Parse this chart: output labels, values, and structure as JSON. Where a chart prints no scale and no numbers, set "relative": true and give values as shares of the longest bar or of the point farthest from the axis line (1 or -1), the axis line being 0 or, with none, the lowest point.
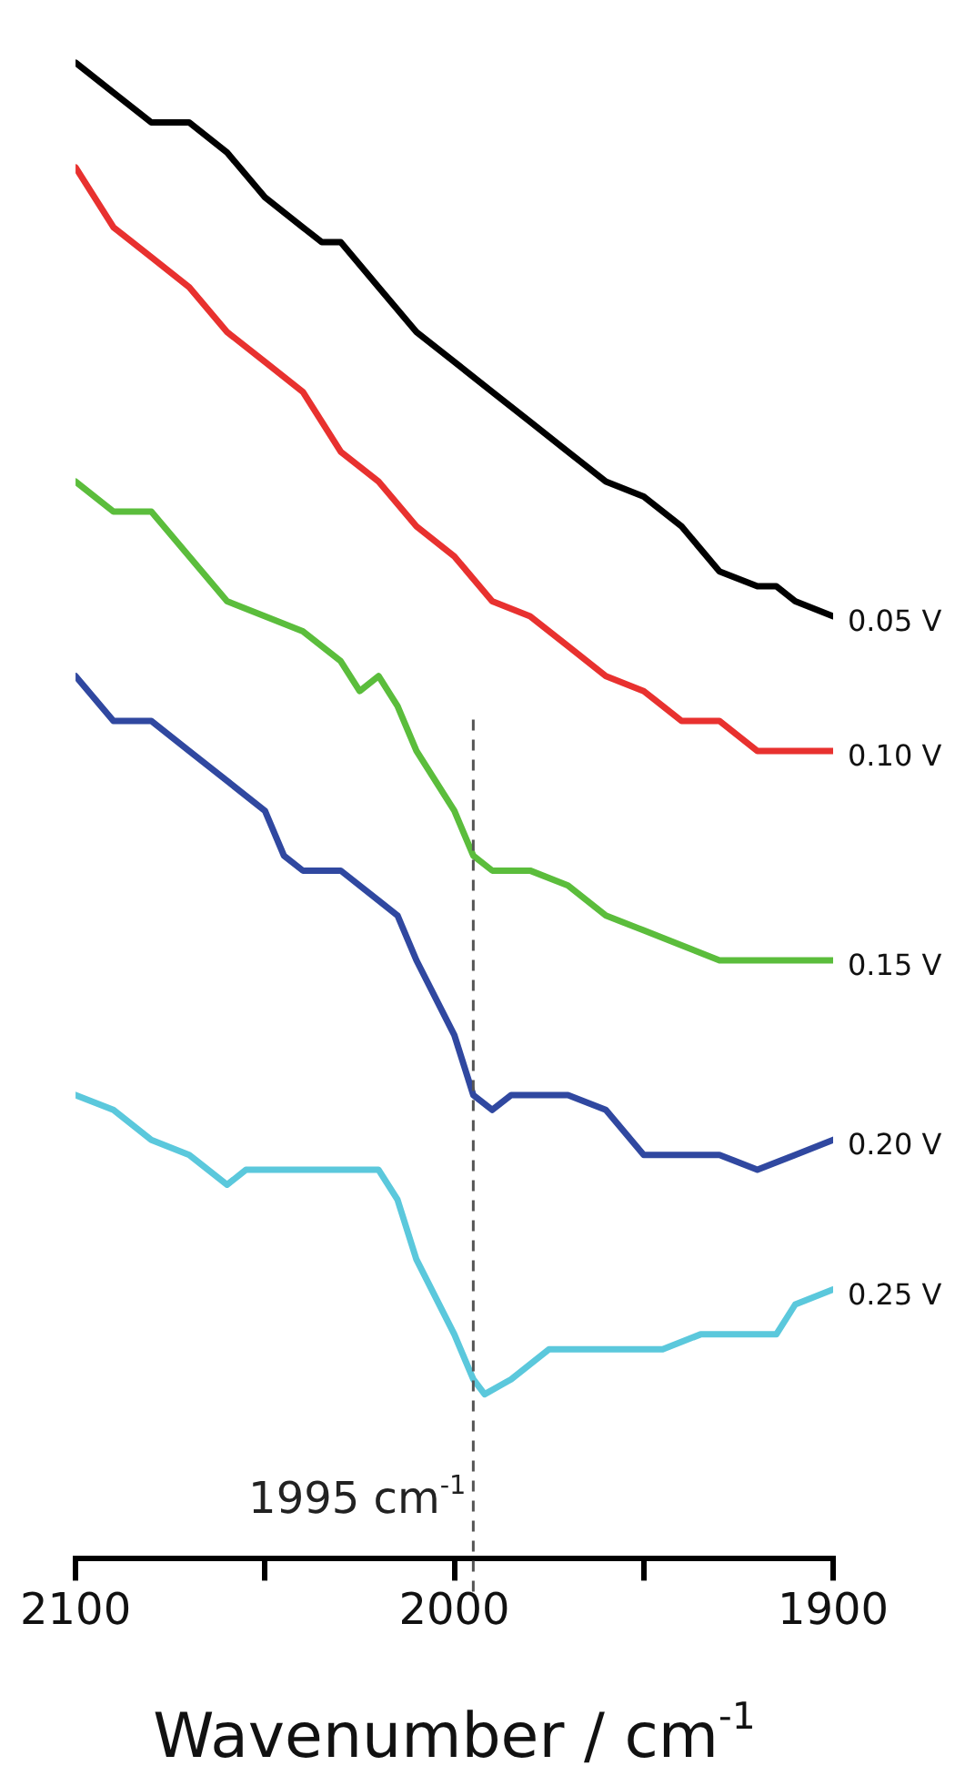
{
  "chart_data": {
    "type": "line",
    "relative": true,
    "xlabel": "Wavenumber / cm$^{-1}$",
    "xlim": [
      2100,
      1900
    ],
    "xticks": [
      2100,
      {
        "value": 2050,
        "label": null
      },
      2000,
      {
        "value": 1950,
        "label": null
      },
      1900
    ],
    "grid": false,
    "legend": false,
    "tick_labels": "x",
    "marker": "none",
    "line_style": "solid",
    "ref_lines": [
      {
        "axis": "x",
        "value": 1995,
        "label": "1995 cm$^{-1}$",
        "color": "#555555",
        "line_style": "dashed"
      }
    ],
    "series": [
      {
        "name": "0.05 V",
        "color": "#000000",
        "x": [
          2100,
          2090,
          2080,
          2070,
          2060,
          2050,
          2040,
          2035,
          2030,
          2020,
          2010,
          2000,
          1990,
          1980,
          1970,
          1960,
          1950,
          1940,
          1930,
          1920,
          1915,
          1910,
          1900
        ],
        "values": [
          1.0,
          0.98,
          0.96,
          0.96,
          0.94,
          0.91,
          0.89,
          0.88,
          0.88,
          0.85,
          0.82,
          0.8,
          0.78,
          0.76,
          0.74,
          0.72,
          0.71,
          0.69,
          0.66,
          0.65,
          0.65,
          0.64,
          0.63
        ]
      },
      {
        "name": "0.10 V",
        "color": "#e8312f",
        "x": [
          2100,
          2090,
          2080,
          2070,
          2060,
          2050,
          2040,
          2030,
          2020,
          2010,
          2000,
          1990,
          1980,
          1970,
          1960,
          1950,
          1940,
          1930,
          1920,
          1910,
          1900
        ],
        "values": [
          0.93,
          0.89,
          0.87,
          0.85,
          0.82,
          0.8,
          0.78,
          0.74,
          0.72,
          0.69,
          0.67,
          0.64,
          0.63,
          0.61,
          0.59,
          0.58,
          0.56,
          0.56,
          0.54,
          0.54,
          0.54
        ]
      },
      {
        "name": "0.15 V",
        "color": "#5bbd3c",
        "x": [
          2100,
          2090,
          2080,
          2070,
          2060,
          2050,
          2040,
          2030,
          2025,
          2020,
          2015,
          2010,
          2000,
          1995,
          1990,
          1980,
          1970,
          1960,
          1950,
          1940,
          1930,
          1920,
          1910,
          1900
        ],
        "values": [
          0.72,
          0.7,
          0.7,
          0.67,
          0.64,
          0.63,
          0.62,
          0.6,
          0.58,
          0.59,
          0.57,
          0.54,
          0.5,
          0.47,
          0.46,
          0.46,
          0.45,
          0.43,
          0.42,
          0.41,
          0.4,
          0.4,
          0.4,
          0.4
        ]
      },
      {
        "name": "0.20 V",
        "color": "#3048a0",
        "x": [
          2100,
          2090,
          2080,
          2070,
          2060,
          2050,
          2045,
          2040,
          2030,
          2020,
          2015,
          2010,
          2000,
          1995,
          1990,
          1985,
          1980,
          1970,
          1960,
          1950,
          1940,
          1930,
          1920,
          1910,
          1900
        ],
        "values": [
          0.59,
          0.56,
          0.56,
          0.54,
          0.52,
          0.5,
          0.47,
          0.46,
          0.46,
          0.44,
          0.43,
          0.4,
          0.35,
          0.31,
          0.3,
          0.31,
          0.31,
          0.31,
          0.3,
          0.27,
          0.27,
          0.27,
          0.26,
          0.27,
          0.28
        ]
      },
      {
        "name": "0.25 V",
        "color": "#5bc8dc",
        "x": [
          2100,
          2090,
          2080,
          2070,
          2060,
          2055,
          2050,
          2040,
          2030,
          2020,
          2015,
          2010,
          2000,
          1995,
          1992,
          1985,
          1975,
          1965,
          1955,
          1945,
          1935,
          1925,
          1915,
          1910,
          1900
        ],
        "values": [
          0.31,
          0.3,
          0.28,
          0.27,
          0.25,
          0.26,
          0.26,
          0.26,
          0.26,
          0.26,
          0.24,
          0.2,
          0.15,
          0.12,
          0.11,
          0.12,
          0.14,
          0.14,
          0.14,
          0.14,
          0.15,
          0.15,
          0.15,
          0.17,
          0.18
        ]
      }
    ]
  }
}
